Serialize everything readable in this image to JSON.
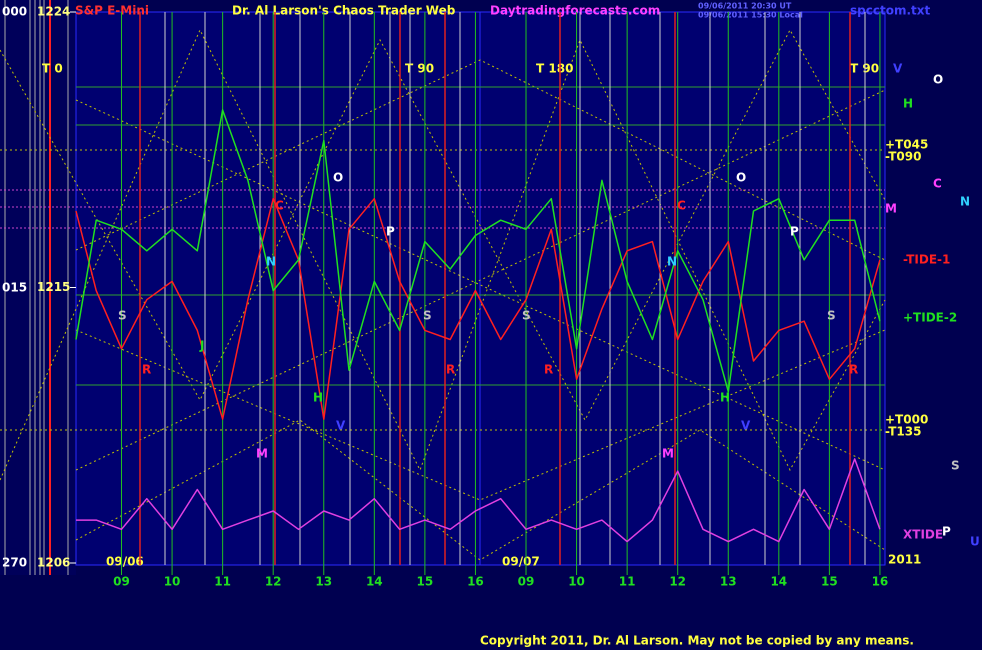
{
  "chart_data": {
    "type": "line",
    "subtitle": "S&P E-Mini",
    "title": "Dr. Al Larson's Chaos Trader Web",
    "site": "Daytradingforecasts.com",
    "timestamps": [
      "09/06/2011 20:30 UT",
      "09/06/2011 15:30 Local"
    ],
    "file": "spcctom.txt",
    "copyright": "Copyright 2011, Dr. Al Larson. May not be copied by any means.",
    "angle_labels": [
      "000",
      "015",
      "270"
    ],
    "date_labels": [
      "09/06",
      "09/07"
    ],
    "year": "2011",
    "t_labels": [
      "T 0",
      "T 90",
      "T 180",
      "T 90"
    ],
    "right_labels": [
      "V",
      "O",
      "H",
      "+T045",
      "-T090",
      "C",
      "N",
      "M",
      "+T000",
      "-T135",
      "S",
      "P",
      "U"
    ],
    "plot_letters": [
      "S",
      "R",
      "J",
      "H",
      "C",
      "N",
      "O",
      "P",
      "S",
      "R",
      "M",
      "V",
      "S",
      "R",
      "C",
      "N",
      "O",
      "P",
      "S",
      "R",
      "H",
      "M",
      "V"
    ],
    "x": [
      -0.9,
      -0.5,
      0,
      0.5,
      1,
      1.5,
      2,
      2.5,
      3,
      3.5,
      4,
      4.5,
      5,
      5.5,
      6,
      6.5,
      7,
      7.5,
      8,
      8.5,
      9,
      9.5,
      10,
      10.5,
      11,
      11.5,
      12,
      12.5,
      13,
      13.5,
      14,
      14.5,
      15
    ],
    "xlim": [
      -0.9,
      15.1
    ],
    "xticks": [
      {
        "value": 0,
        "label": "09"
      },
      {
        "value": 1,
        "label": "10"
      },
      {
        "value": 2,
        "label": "11"
      },
      {
        "value": 3,
        "label": "12"
      },
      {
        "value": 4,
        "label": "13"
      },
      {
        "value": 5,
        "label": "14"
      },
      {
        "value": 6,
        "label": "15"
      },
      {
        "value": 7,
        "label": "16"
      },
      {
        "value": 8,
        "label": "09"
      },
      {
        "value": 9,
        "label": "10"
      },
      {
        "value": 10,
        "label": "11"
      },
      {
        "value": 11,
        "label": "12"
      },
      {
        "value": 12,
        "label": "13"
      },
      {
        "value": 13,
        "label": "14"
      },
      {
        "value": 14,
        "label": "15"
      },
      {
        "value": 15,
        "label": "16"
      }
    ],
    "ylim": [
      1206,
      1224
    ],
    "yticks": [
      1206,
      1215,
      1224
    ],
    "series": [
      {
        "name": "-TIDE-1",
        "color": "#ff2020",
        "values": [
          1217.5,
          1214.9,
          1213.0,
          1214.6,
          1215.2,
          1213.6,
          1210.7,
          1214.6,
          1217.9,
          1215.9,
          1210.7,
          1216.9,
          1217.9,
          1215.2,
          1213.6,
          1213.3,
          1214.9,
          1213.3,
          1214.6,
          1216.9,
          1212.0,
          1214.3,
          1216.2,
          1216.5,
          1213.3,
          1215.2,
          1216.5,
          1212.6,
          1213.6,
          1213.9,
          1212.0,
          1213.0,
          1215.9
        ]
      },
      {
        "name": "+TIDE-2",
        "color": "#20e020",
        "values": [
          1213.3,
          1217.2,
          1216.9,
          1216.2,
          1216.9,
          1216.2,
          1220.8,
          1218.5,
          1214.9,
          1215.9,
          1219.8,
          1212.3,
          1215.2,
          1213.6,
          1216.5,
          1215.6,
          1216.7,
          1217.2,
          1216.9,
          1217.9,
          1213.0,
          1218.5,
          1215.2,
          1213.3,
          1216.2,
          1214.6,
          1211.6,
          1217.5,
          1217.9,
          1215.9,
          1217.2,
          1217.2,
          1213.9
        ]
      },
      {
        "name": "XTIDE",
        "color": "#e040e0",
        "values": [
          1207.4,
          1207.4,
          1207.1,
          1208.1,
          1207.1,
          1208.4,
          1207.1,
          1207.4,
          1207.7,
          1207.1,
          1207.7,
          1207.4,
          1208.1,
          1207.1,
          1207.4,
          1207.1,
          1207.7,
          1208.1,
          1207.1,
          1207.4,
          1207.1,
          1207.4,
          1206.7,
          1207.4,
          1209.0,
          1207.1,
          1206.7,
          1207.1,
          1206.7,
          1208.4,
          1207.1,
          1209.4,
          1207.1
        ]
      }
    ]
  }
}
